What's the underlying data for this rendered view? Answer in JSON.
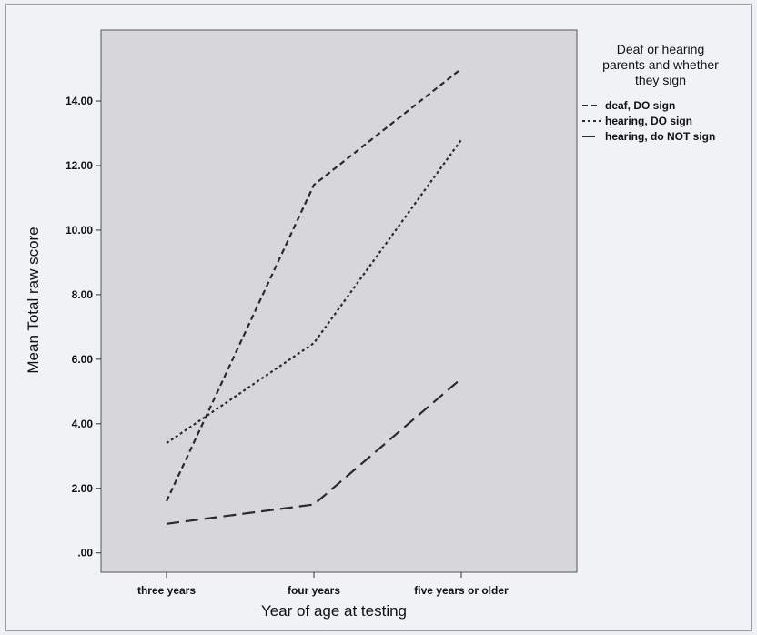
{
  "chart_data": {
    "type": "line",
    "categories": [
      "three years",
      "four years",
      "five years or older"
    ],
    "series": [
      {
        "name": "deaf, DO sign",
        "values": [
          1.6,
          11.4,
          15.0
        ],
        "dash": "6,4"
      },
      {
        "name": "hearing, DO sign",
        "values": [
          3.4,
          6.5,
          12.8
        ],
        "dash": "3,3"
      },
      {
        "name": "hearing, do NOT sign",
        "values": [
          0.9,
          1.5,
          5.4
        ],
        "dash": "14,7"
      }
    ],
    "yticks": [
      ".00",
      "2.00",
      "4.00",
      "6.00",
      "8.00",
      "10.00",
      "12.00",
      "14.00"
    ],
    "ylim": [
      -0.6,
      16.2
    ],
    "xlabel": "Year of age at testing",
    "ylabel": "Mean Total raw score",
    "legend": {
      "title_lines": [
        "Deaf or hearing",
        "parents and whether",
        "they sign"
      ],
      "placement": "right"
    },
    "colors": {
      "plot_bg": "#d7d7d9",
      "line": "#2a2a2a"
    }
  }
}
